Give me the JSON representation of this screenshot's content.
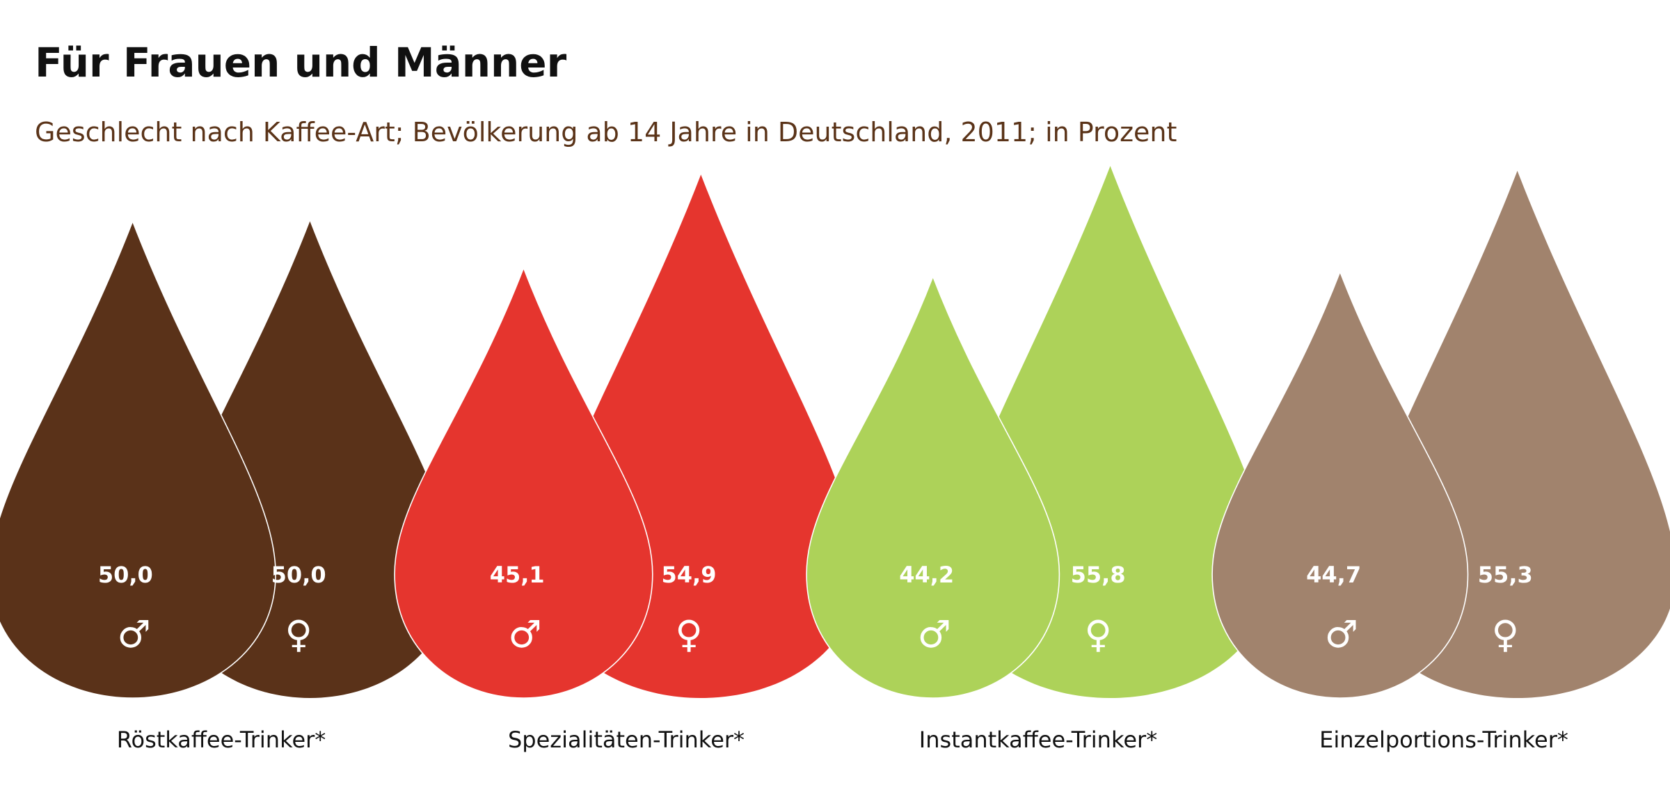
{
  "chart_data": {
    "type": "bar",
    "title": "Für Frauen und Männer",
    "subtitle": "Geschlecht nach Kaffee-Art; Bevölkerung ab 14 Jahre in Deutschland, 2011; in Prozent",
    "categories": [
      "Röstkaffee-Trinker*",
      "Spezialitäten-Trinker*",
      "Instantkaffee-Trinker*",
      "Einzelportions-Trinker*"
    ],
    "series": [
      {
        "symbol": "♂",
        "values": [
          50.0,
          45.1,
          44.2,
          44.7
        ],
        "labels": [
          "50,0",
          "45,1",
          "44,2",
          "44,7"
        ]
      },
      {
        "symbol": "♀",
        "values": [
          50.0,
          54.9,
          55.8,
          55.3
        ],
        "labels": [
          "50,0",
          "54,9",
          "55,8",
          "55,3"
        ]
      }
    ],
    "colors": [
      "#5a3219",
      "#e5352e",
      "#add259",
      "#a1836d"
    ],
    "ylim": [
      0,
      60
    ],
    "grid": false,
    "legend": "none"
  }
}
